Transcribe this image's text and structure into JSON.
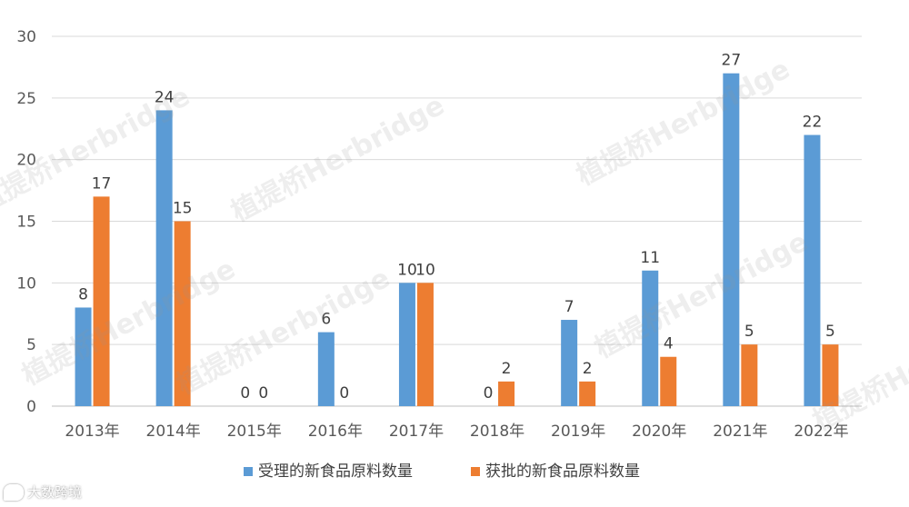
{
  "chart_data": {
    "type": "bar",
    "categories": [
      "2013年",
      "2014年",
      "2015年",
      "2016年",
      "2017年",
      "2018年",
      "2019年",
      "2020年",
      "2021年",
      "2022年"
    ],
    "series": [
      {
        "name": "受理的新食品原料数量",
        "color": "#5B9BD5",
        "values": [
          8,
          24,
          0,
          6,
          10,
          0,
          7,
          11,
          27,
          22
        ]
      },
      {
        "name": "获批的新食品原料数量",
        "color": "#ED7D31",
        "values": [
          17,
          15,
          0,
          0,
          10,
          2,
          2,
          4,
          5,
          5
        ]
      }
    ],
    "ylim": [
      0,
      30
    ],
    "yticks": [
      0,
      5,
      10,
      15,
      20,
      25,
      30
    ],
    "grid": true,
    "legend": "bottom",
    "data_labels": true,
    "title": "",
    "xlabel": "",
    "ylabel": ""
  },
  "watermark": {
    "text": "植提桥Herbridge"
  },
  "brand": {
    "text": "大数跨境"
  }
}
